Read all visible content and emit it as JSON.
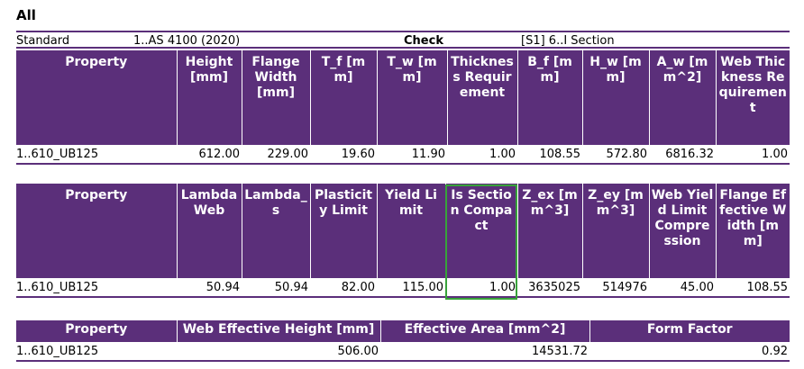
{
  "title": "All",
  "meta": {
    "standard_label": "Standard",
    "standard_value": "1..AS 4100 (2020)",
    "check_label": "Check",
    "check_value": "[S1] 6..I Section"
  },
  "table1": {
    "headers": [
      "Property",
      "Height [mm]",
      "Flange Width [mm]",
      "T_f [mm]",
      "T_w [mm]",
      "Thickness Requirement",
      "B_f [mm]",
      "H_w [mm]",
      "A_w [mm^2]",
      "Web Thickness Requirement"
    ],
    "row": [
      "1..610_UB125",
      "612.00",
      "229.00",
      "19.60",
      "11.90",
      "1.00",
      "108.55",
      "572.80",
      "6816.32",
      "1.00"
    ]
  },
  "table2": {
    "headers": [
      "Property",
      "Lambda Web",
      "Lambda_s",
      "Plasticity Limit",
      "Yield Limit",
      "Is Section Compact",
      "Z_ex [mm^3]",
      "Z_ey [mm^3]",
      "Web Yield Limit Compression",
      "Flange Effective Width [mm]"
    ],
    "row": [
      "1..610_UB125",
      "50.94",
      "50.94",
      "82.00",
      "115.00",
      "1.00",
      "3635025",
      "514976",
      "45.00",
      "108.55"
    ]
  },
  "table3": {
    "headers": [
      "Property",
      "Web Effective Height [mm]",
      "Effective Area [mm^2]",
      "Form Factor"
    ],
    "row": [
      "1..610_UB125",
      "506.00",
      "14531.72",
      "0.92"
    ]
  },
  "colors": {
    "header_bg": "#5b2f7a",
    "highlight": "#38a33a"
  }
}
